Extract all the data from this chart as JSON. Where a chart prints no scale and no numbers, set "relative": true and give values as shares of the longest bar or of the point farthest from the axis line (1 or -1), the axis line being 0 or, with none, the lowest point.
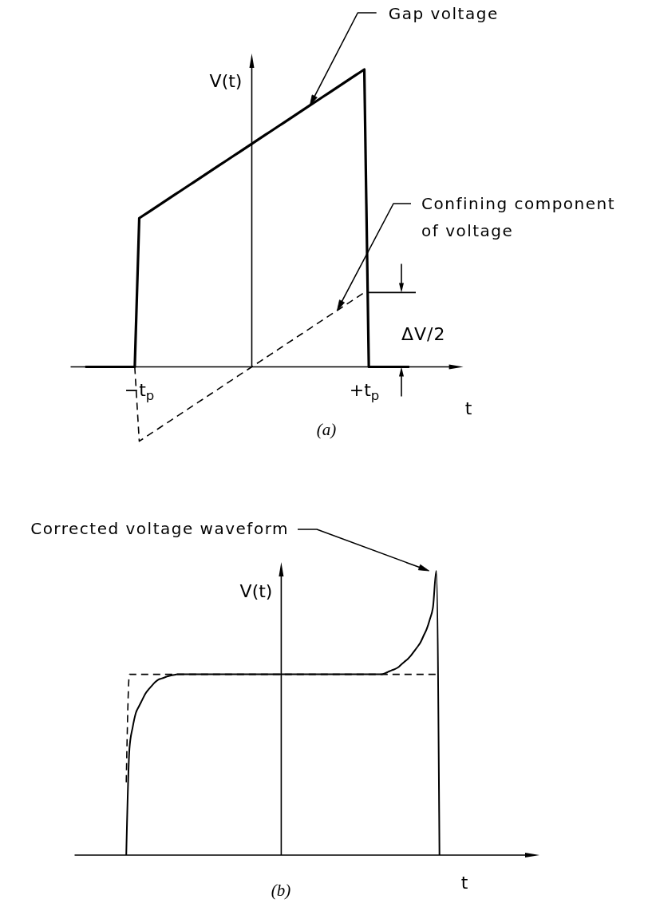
{
  "chart_data": [
    {
      "type": "line",
      "xlabel": "t",
      "ylabel": "V(t)",
      "relative": true,
      "tick_labels": "x",
      "categories": [
        null,
        null,
        null,
        null,
        null,
        null,
        null,
        null,
        null,
        null,
        null,
        null,
        "−t$_{p}$",
        null,
        null,
        null,
        null,
        null,
        null,
        null,
        null,
        null,
        null,
        null,
        null,
        null,
        null,
        null,
        null,
        null,
        null,
        null,
        null,
        null,
        null,
        null,
        null,
        null,
        null,
        null,
        null,
        null,
        null,
        null,
        null,
        null,
        null,
        null,
        null,
        null,
        null,
        null,
        null,
        null,
        null,
        null,
        null,
        null,
        null,
        null,
        null,
        null,
        "+t$_{p}$",
        null,
        null,
        null,
        null,
        null,
        null,
        null,
        null,
        null,
        null
      ],
      "series": [
        {
          "name": "Gap voltage",
          "color": "#000000",
          "line_style": "solid",
          "values": [
            0,
            0,
            0,
            0,
            0,
            0,
            0,
            0,
            0,
            0,
            0,
            0,
            0.5,
            0.51,
            0.52,
            0.53,
            0.54,
            0.55,
            0.56,
            0.57,
            0.58,
            0.59,
            0.6,
            0.61,
            0.62,
            0.63,
            0.64,
            0.65,
            0.66,
            0.67,
            0.68,
            0.69,
            0.7,
            0.71,
            0.72,
            0.73,
            0.74,
            0.75,
            0.76,
            0.77,
            0.78,
            0.79,
            0.8,
            0.81,
            0.82,
            0.83,
            0.84,
            0.85,
            0.86,
            0.87,
            0.88,
            0.89,
            0.9,
            0.91,
            0.92,
            0.93,
            0.94,
            0.95,
            0.96,
            0.97,
            0.98,
            0.99,
            1,
            0,
            0,
            0,
            0,
            0,
            0,
            0,
            0,
            0,
            0
          ]
        },
        {
          "name": "Confining component of voltage",
          "color": "#000000",
          "line_style": "dashed",
          "values": [
            null,
            null,
            null,
            null,
            null,
            null,
            null,
            null,
            null,
            null,
            null,
            0,
            -0.25,
            -0.24,
            -0.23,
            -0.22,
            -0.21,
            -0.2,
            -0.19,
            -0.18,
            -0.17,
            -0.16,
            -0.15,
            -0.14,
            -0.13,
            -0.12,
            -0.11,
            -0.1,
            -0.09,
            -0.08,
            -0.07,
            -0.06,
            -0.05,
            -0.04,
            -0.03,
            -0.02,
            -0.01,
            0,
            0.01,
            0.02,
            0.03,
            0.04,
            0.05,
            0.06,
            0.07,
            0.08,
            0.09,
            0.1,
            0.11,
            0.12,
            0.13,
            0.14,
            0.15,
            0.16,
            0.17,
            0.18,
            0.19,
            0.2,
            0.21,
            0.22,
            0.23,
            0.24,
            0.25,
            null,
            null,
            null,
            null,
            null,
            null,
            null,
            null,
            null,
            null
          ]
        }
      ],
      "annotations": [
        "ΔV/2",
        "(a)"
      ]
    },
    {
      "type": "line",
      "xlabel": "t",
      "ylabel": "V(t)",
      "relative": true,
      "tick_labels": false,
      "categories": [
        null,
        null,
        null,
        null,
        null,
        null,
        null,
        null,
        null,
        null,
        null,
        null,
        null,
        null,
        null,
        null,
        null,
        null,
        null,
        null,
        null,
        null,
        null,
        null,
        null,
        null,
        null,
        null,
        null,
        null,
        null,
        null,
        null,
        null,
        null,
        null,
        null,
        null,
        null,
        null,
        null,
        null,
        null,
        null,
        null,
        null,
        null,
        null,
        null,
        null,
        null,
        null,
        null,
        null,
        null,
        null,
        null,
        null,
        null,
        null,
        null,
        null,
        null,
        null,
        null,
        null,
        null,
        null,
        null,
        null,
        null,
        null,
        null,
        null,
        null,
        null,
        null,
        null,
        null,
        null,
        null,
        null,
        null,
        null,
        null,
        null,
        null,
        null,
        null,
        null,
        null,
        null,
        null,
        null,
        null,
        null,
        null,
        null,
        null
      ],
      "series": [
        {
          "name": "Corrected voltage waveform",
          "color": "#000000",
          "line_style": "solid",
          "values": [
            0,
            0.374,
            0.449,
            0.5,
            0.524,
            0.546,
            0.568,
            0.583,
            0.596,
            0.608,
            0.617,
            0.621,
            0.625,
            0.629,
            0.632,
            0.634,
            0.636,
            0.636,
            0.636,
            0.636,
            0.636,
            0.636,
            0.636,
            0.636,
            0.636,
            0.636,
            0.636,
            0.636,
            0.636,
            0.636,
            0.636,
            0.636,
            0.636,
            0.636,
            0.636,
            0.636,
            0.636,
            0.636,
            0.636,
            0.636,
            0.636,
            0.636,
            0.636,
            0.636,
            0.636,
            0.636,
            0.636,
            0.636,
            0.636,
            0.636,
            0.636,
            0.636,
            0.636,
            0.636,
            0.636,
            0.636,
            0.636,
            0.636,
            0.636,
            0.636,
            0.636,
            0.636,
            0.636,
            0.636,
            0.636,
            0.636,
            0.636,
            0.636,
            0.636,
            0.636,
            0.636,
            0.636,
            0.636,
            0.636,
            0.636,
            0.636,
            0.636,
            0.636,
            0.636,
            0.636,
            0.636,
            0.64,
            0.645,
            0.65,
            0.654,
            0.66,
            0.67,
            0.68,
            0.689,
            0.701,
            0.716,
            0.731,
            0.747,
            0.771,
            0.795,
            0.83,
            0.875,
            1,
            0
          ]
        },
        {
          "color": "#000000",
          "line_style": "dashed",
          "values": [
            0.256,
            0.636,
            0.636,
            0.636,
            0.636,
            0.636,
            0.636,
            0.636,
            0.636,
            0.636,
            0.636,
            0.636,
            0.636,
            0.636,
            0.636,
            0.636,
            0.636,
            0.636,
            0.636,
            0.636,
            0.636,
            0.636,
            0.636,
            0.636,
            0.636,
            0.636,
            0.636,
            0.636,
            0.636,
            0.636,
            0.636,
            0.636,
            0.636,
            0.636,
            0.636,
            0.636,
            0.636,
            0.636,
            0.636,
            0.636,
            0.636,
            0.636,
            0.636,
            0.636,
            0.636,
            0.636,
            0.636,
            0.636,
            0.636,
            0.636,
            0.636,
            0.636,
            0.636,
            0.636,
            0.636,
            0.636,
            0.636,
            0.636,
            0.636,
            0.636,
            0.636,
            0.636,
            0.636,
            0.636,
            0.636,
            0.636,
            0.636,
            0.636,
            0.636,
            0.636,
            0.636,
            0.636,
            0.636,
            0.636,
            0.636,
            0.636,
            0.636,
            0.636,
            0.636,
            0.636,
            0.636,
            0.636,
            0.636,
            0.636,
            0.636,
            0.636,
            0.636,
            0.636,
            0.636,
            0.636,
            0.636,
            0.636,
            0.636,
            0.636,
            0.636,
            0.636,
            0.636,
            0.636,
            null
          ]
        }
      ],
      "annotations": [
        "(b)"
      ]
    }
  ]
}
